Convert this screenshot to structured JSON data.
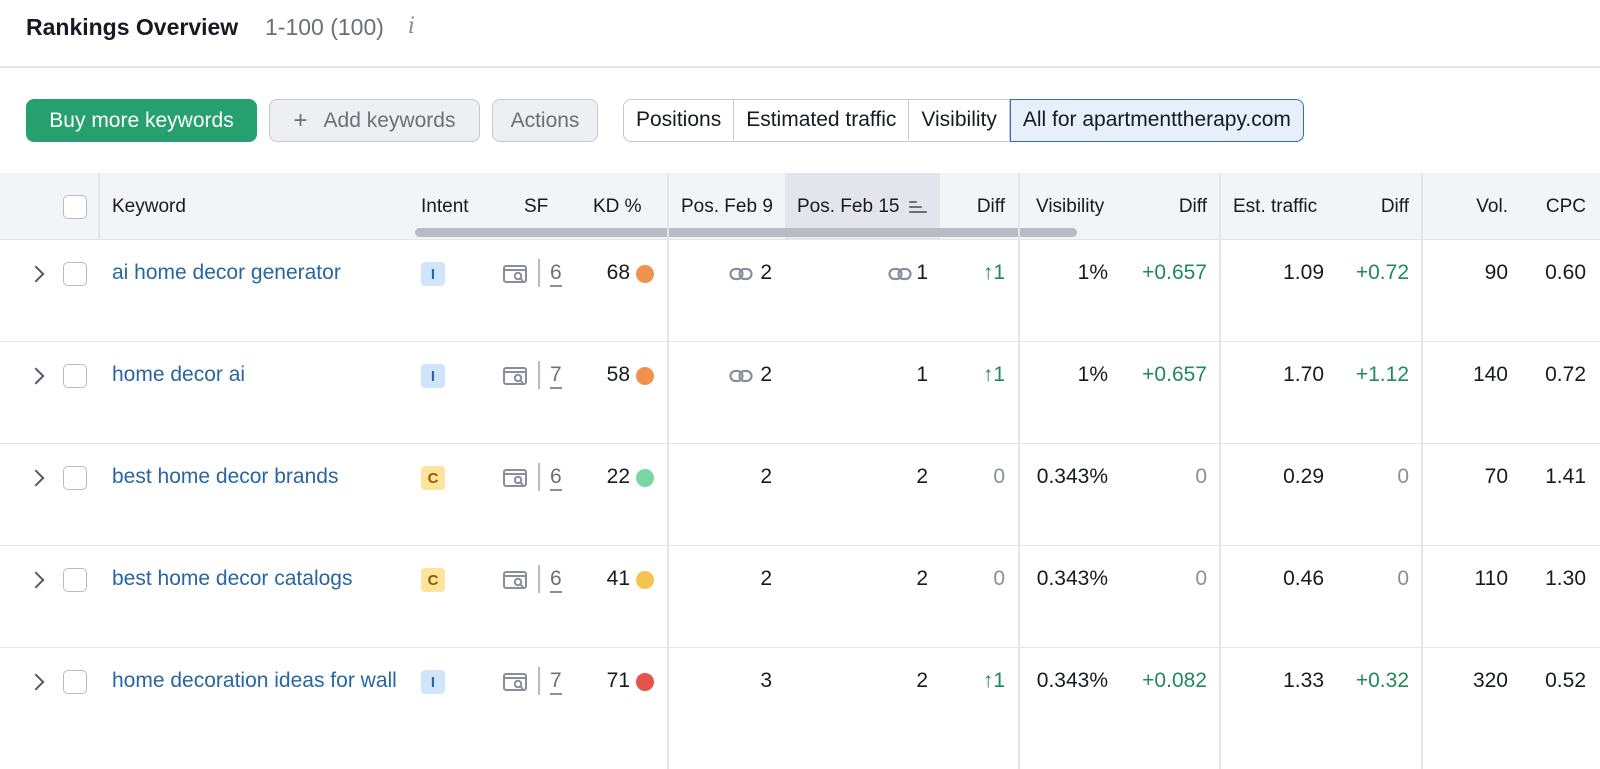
{
  "header": {
    "title": "Rankings Overview",
    "count": "1-100 (100)",
    "info_glyph": "i"
  },
  "toolbar": {
    "buy_label": "Buy more keywords",
    "add_label": "Add keywords",
    "add_icon": "+",
    "actions_label": "Actions",
    "segments": [
      "Positions",
      "Estimated traffic",
      "Visibility",
      "All for apartmenttherapy.com"
    ],
    "active_segment": "All for apartmenttherapy.com"
  },
  "columns": {
    "keyword": "Keyword",
    "intent": "Intent",
    "sf": "SF",
    "kd": "KD %",
    "pos_prev": "Pos. Feb 9",
    "pos_curr": "Pos. Feb 15",
    "pos_diff": "Diff",
    "visibility": "Visibility",
    "vis_diff": "Diff",
    "traffic": "Est. traffic",
    "traffic_diff": "Diff",
    "vol": "Vol.",
    "cpc": "CPC"
  },
  "rows": [
    {
      "keyword": "ai home decor generator",
      "intent": "I",
      "sf": "6",
      "kd": "68",
      "kd_color": "#f0924b",
      "pos_prev": "2",
      "pos_prev_link": true,
      "pos_curr": "1",
      "pos_curr_link": true,
      "pos_diff": "↑1",
      "visibility": "1%",
      "vis_diff": "+0.657",
      "traffic": "1.09",
      "traffic_diff": "+0.72",
      "vol": "90",
      "cpc": "0.60"
    },
    {
      "keyword": "home decor ai",
      "intent": "I",
      "sf": "7",
      "kd": "58",
      "kd_color": "#f0924b",
      "pos_prev": "2",
      "pos_prev_link": true,
      "pos_curr": "1",
      "pos_curr_link": false,
      "pos_diff": "↑1",
      "visibility": "1%",
      "vis_diff": "+0.657",
      "traffic": "1.70",
      "traffic_diff": "+1.12",
      "vol": "140",
      "cpc": "0.72"
    },
    {
      "keyword": "best home decor brands",
      "intent": "C",
      "sf": "6",
      "kd": "22",
      "kd_color": "#78d5a4",
      "pos_prev": "2",
      "pos_prev_link": false,
      "pos_curr": "2",
      "pos_curr_link": false,
      "pos_diff": "0",
      "visibility": "0.343%",
      "vis_diff": "0",
      "traffic": "0.29",
      "traffic_diff": "0",
      "vol": "70",
      "cpc": "1.41"
    },
    {
      "keyword": "best home decor catalogs",
      "intent": "C",
      "sf": "6",
      "kd": "41",
      "kd_color": "#f5c34f",
      "pos_prev": "2",
      "pos_prev_link": false,
      "pos_curr": "2",
      "pos_curr_link": false,
      "pos_diff": "0",
      "visibility": "0.343%",
      "vis_diff": "0",
      "traffic": "0.46",
      "traffic_diff": "0",
      "vol": "110",
      "cpc": "1.30"
    },
    {
      "keyword": "home decoration ideas for wall",
      "intent": "I",
      "sf": "7",
      "kd": "71",
      "kd_color": "#e5534b",
      "pos_prev": "3",
      "pos_prev_link": false,
      "pos_curr": "2",
      "pos_curr_link": false,
      "pos_diff": "↑1",
      "visibility": "0.343%",
      "vis_diff": "+0.082",
      "traffic": "1.33",
      "traffic_diff": "+0.32",
      "vol": "320",
      "cpc": "0.52"
    }
  ],
  "icons": {
    "serp": "serp-features-icon",
    "link": "link-icon",
    "expand": "chevron-right-icon",
    "sort": "sort-descending-icon",
    "info": "info-icon"
  },
  "colors": {
    "primary_button": "#26a06e",
    "keyword_link": "#2866a3",
    "positive": "#1f8a5a",
    "active_segment_border": "#2b6fb4"
  }
}
